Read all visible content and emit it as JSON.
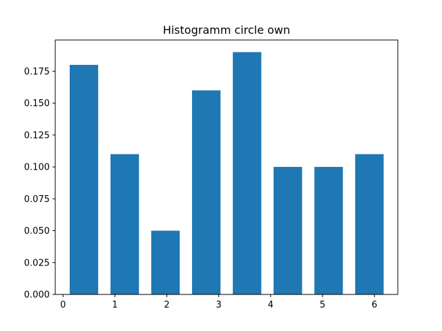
{
  "chart_data": {
    "type": "bar",
    "title": "Histogramm circle own",
    "xlabel": "",
    "ylabel": "",
    "xlim": [
      -0.15,
      6.45
    ],
    "ylim": [
      0,
      0.1995
    ],
    "x_ticks": [
      0,
      1,
      2,
      3,
      4,
      5,
      6
    ],
    "y_ticks": [
      0.0,
      0.025,
      0.05,
      0.075,
      0.1,
      0.125,
      0.15,
      0.175
    ],
    "y_tick_labels": [
      "0.000",
      "0.025",
      "0.050",
      "0.075",
      "0.100",
      "0.125",
      "0.150",
      "0.175"
    ],
    "bar_width": 0.5486,
    "bars": [
      {
        "x_start": 0.1286,
        "value": 0.18
      },
      {
        "x_start": 0.9143,
        "value": 0.11
      },
      {
        "x_start": 1.7,
        "value": 0.05
      },
      {
        "x_start": 2.4857,
        "value": 0.16
      },
      {
        "x_start": 3.2714,
        "value": 0.19
      },
      {
        "x_start": 4.0571,
        "value": 0.1
      },
      {
        "x_start": 4.8429,
        "value": 0.1
      },
      {
        "x_start": 5.6286,
        "value": 0.11
      }
    ],
    "bar_color": "#1f77b4",
    "grid": false,
    "legend": "none"
  }
}
